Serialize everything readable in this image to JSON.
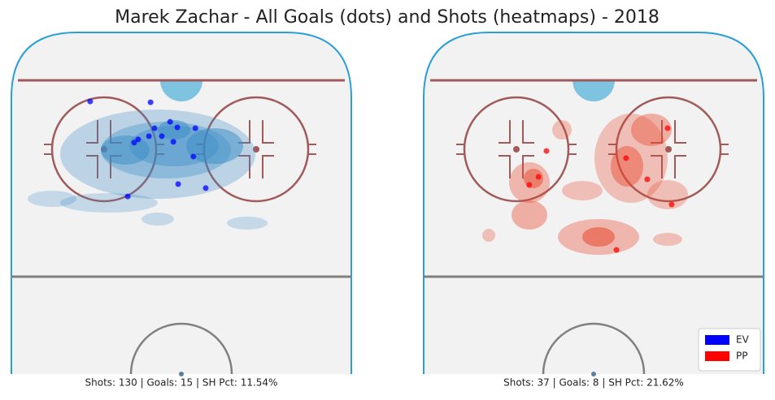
{
  "title": "Marek Zachar - All Goals (dots) and Shots (heatmaps) - 2018",
  "chart_data": [
    {
      "type": "scatter",
      "caption": "Shots: 130 | Goals: 15 | SH Pct: 11.54%",
      "xlim": [
        -42.5,
        42.5
      ],
      "ylim": [
        14.4,
        100
      ],
      "series": [
        {
          "name": "EV",
          "color": "#0000ff",
          "x": [
            -22.8,
            -7.7,
            -2.8,
            -1.0,
            -6.7,
            3.5,
            -10.8,
            -11.8,
            -8.1,
            -4.9,
            -2.0,
            3.0,
            -0.8,
            6.1,
            -13.4
          ],
          "values": [
            82.7,
            82.5,
            77.6,
            76.2,
            76.0,
            76.0,
            73.2,
            72.4,
            74.0,
            74.0,
            72.6,
            68.9,
            62.0,
            61.0,
            58.9
          ]
        }
      ]
    },
    {
      "type": "scatter",
      "caption": "Shots: 37 | Goals: 8 | SH Pct: 21.62%",
      "xlim": [
        -42.5,
        42.5
      ],
      "ylim": [
        14.4,
        100
      ],
      "legend": "lower right",
      "series": [
        {
          "name": "PP",
          "color": "#ff0000",
          "x": [
            18.5,
            -11.8,
            8.1,
            13.4,
            -13.8,
            -16.1,
            19.5,
            5.7
          ],
          "values": [
            76.0,
            70.3,
            68.5,
            63.2,
            63.8,
            61.8,
            56.9,
            45.5
          ]
        }
      ]
    }
  ]
}
